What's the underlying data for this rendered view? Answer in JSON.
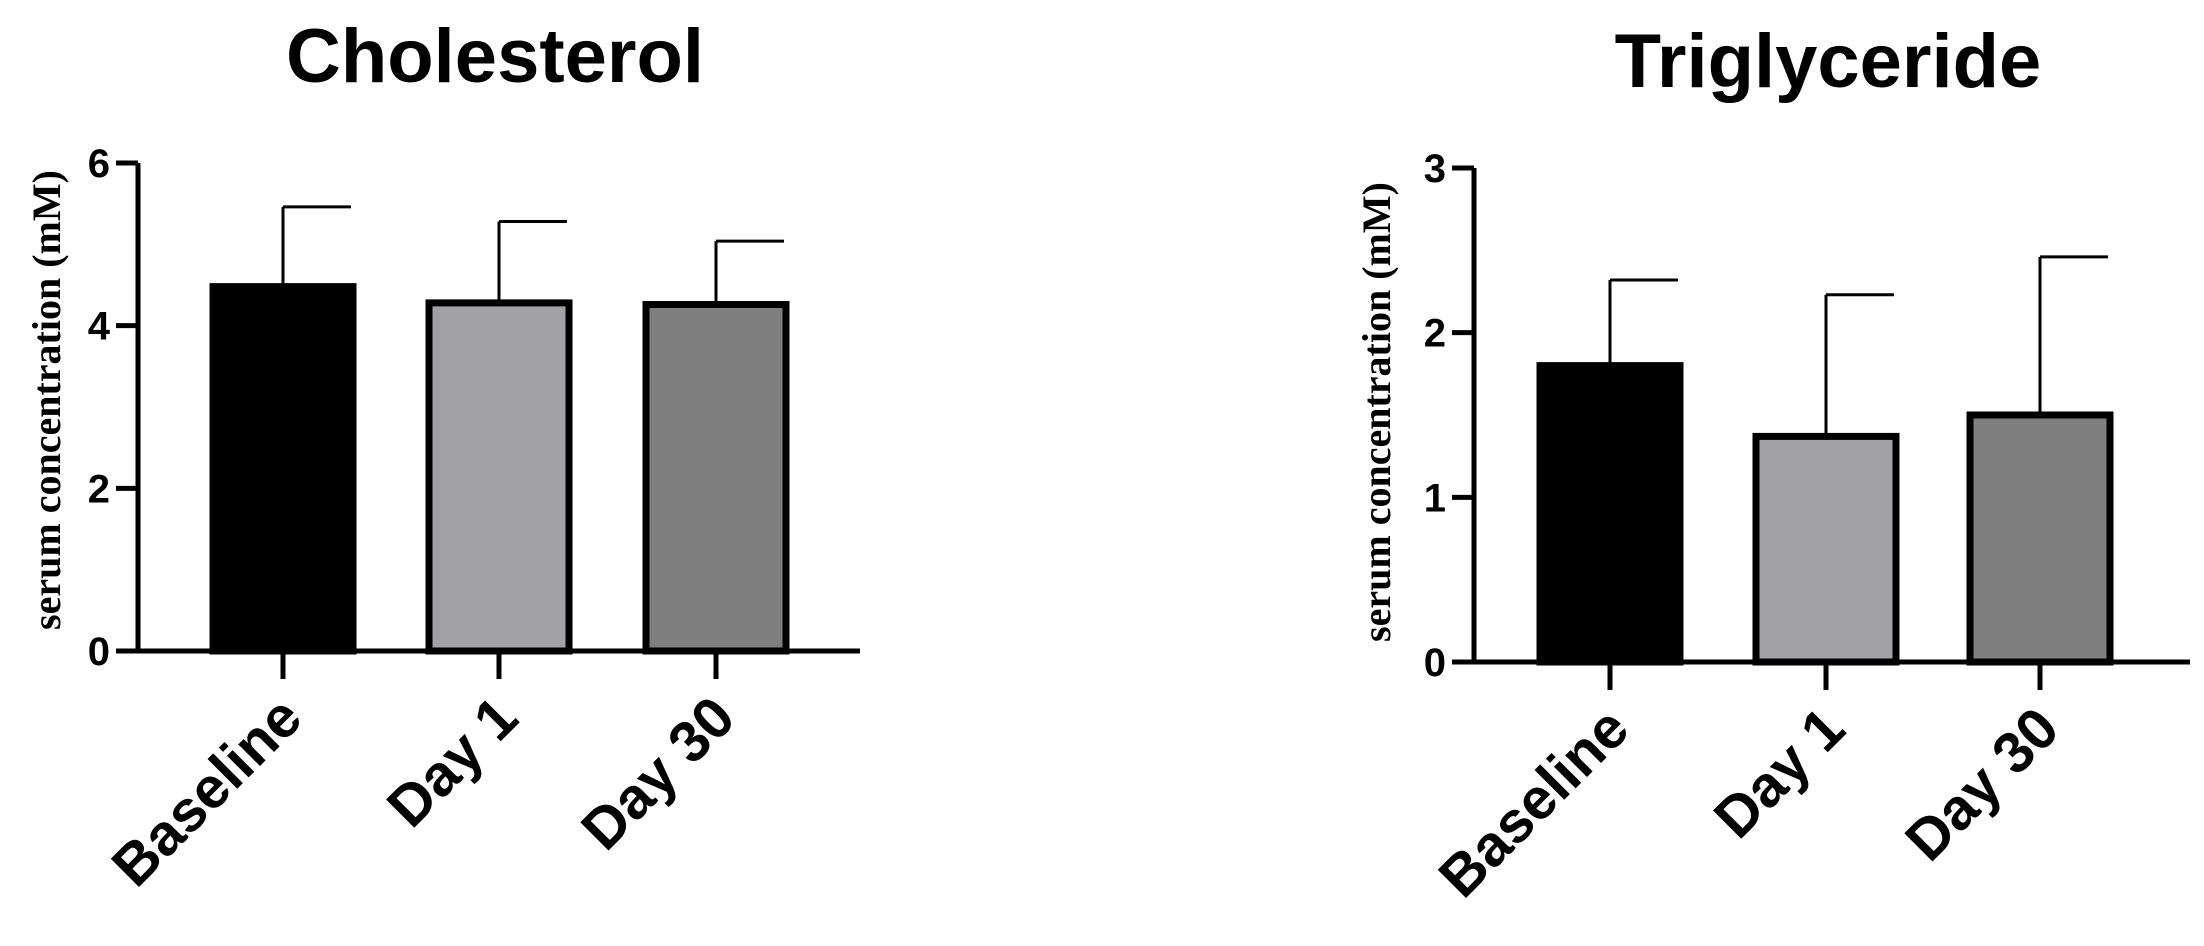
{
  "chart_data": [
    {
      "type": "bar",
      "title": "Cholesterol",
      "ylabel": "serum concentration (mM)",
      "categories": [
        "Baseline",
        "Day 1",
        "Day 30"
      ],
      "values": [
        4.48,
        4.28,
        4.26
      ],
      "errors": [
        0.98,
        1.0,
        0.78
      ],
      "ylim": [
        0,
        6
      ],
      "yticks": [
        0,
        2,
        4,
        6
      ],
      "bar_colors": [
        "#000000",
        "#a2a1a6",
        "#7f7f7f"
      ],
      "grid": false,
      "legend": "none"
    },
    {
      "type": "bar",
      "title": "Triglyceride",
      "ylabel": "serum concentration (mM)",
      "categories": [
        "Baseline",
        "Day 1",
        "Day 30"
      ],
      "values": [
        1.8,
        1.37,
        1.5
      ],
      "errors": [
        0.52,
        0.86,
        0.96
      ],
      "ylim": [
        0,
        3
      ],
      "yticks": [
        0,
        1,
        2,
        3
      ],
      "bar_colors": [
        "#000000",
        "#a2a1a6",
        "#7f7f7f"
      ],
      "grid": false,
      "legend": "none"
    }
  ]
}
